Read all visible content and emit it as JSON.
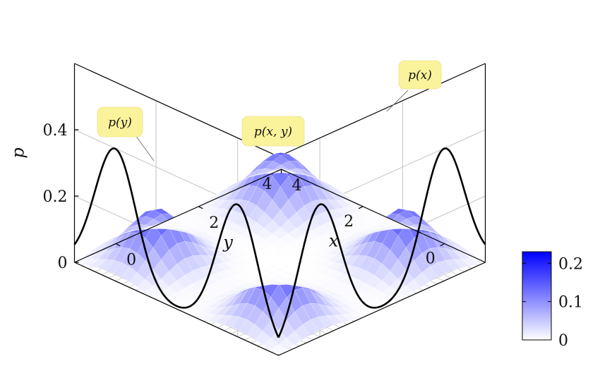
{
  "chart_data": {
    "type": "surface",
    "title": "",
    "xlabel": "x",
    "ylabel": "y",
    "zlabel": "p",
    "x_range": [
      -1,
      4
    ],
    "y_range": [
      -1,
      4
    ],
    "z_range": [
      0,
      0.6
    ],
    "x_ticks": [
      "0",
      "2",
      "4"
    ],
    "y_ticks": [
      "0",
      "2",
      "4"
    ],
    "z_ticks": [
      "0",
      "0.2",
      "0.4"
    ],
    "grid": true,
    "surface": {
      "name": "p(x, y)",
      "function": "p(x) * p(y)",
      "mesh_range": [
        -1,
        4
      ],
      "mesh_samples": 26
    },
    "marginals": [
      {
        "name": "p(y)",
        "wall": "back-left",
        "components": [
          {
            "weight": 0.5,
            "mean": 0,
            "sd": 0.5
          },
          {
            "weight": 0.5,
            "mean": 3,
            "sd": 0.5
          }
        ]
      },
      {
        "name": "p(x)",
        "wall": "back-right",
        "components": [
          {
            "weight": 0.5,
            "mean": 0,
            "sd": 0.5
          },
          {
            "weight": 0.5,
            "mean": 3,
            "sd": 0.5
          }
        ]
      }
    ],
    "annotations": [
      {
        "text": "p(y)",
        "target": "p(y)"
      },
      {
        "text": "p(x, y)",
        "target": "surface"
      },
      {
        "text": "p(x)",
        "target": "p(x)"
      }
    ],
    "colorbar": {
      "min": 0,
      "max": 0.23,
      "ticks": [
        "0",
        "0.1",
        "0.2"
      ],
      "colors": [
        "#ffffff",
        "#0000ff"
      ],
      "placement": "right"
    }
  }
}
